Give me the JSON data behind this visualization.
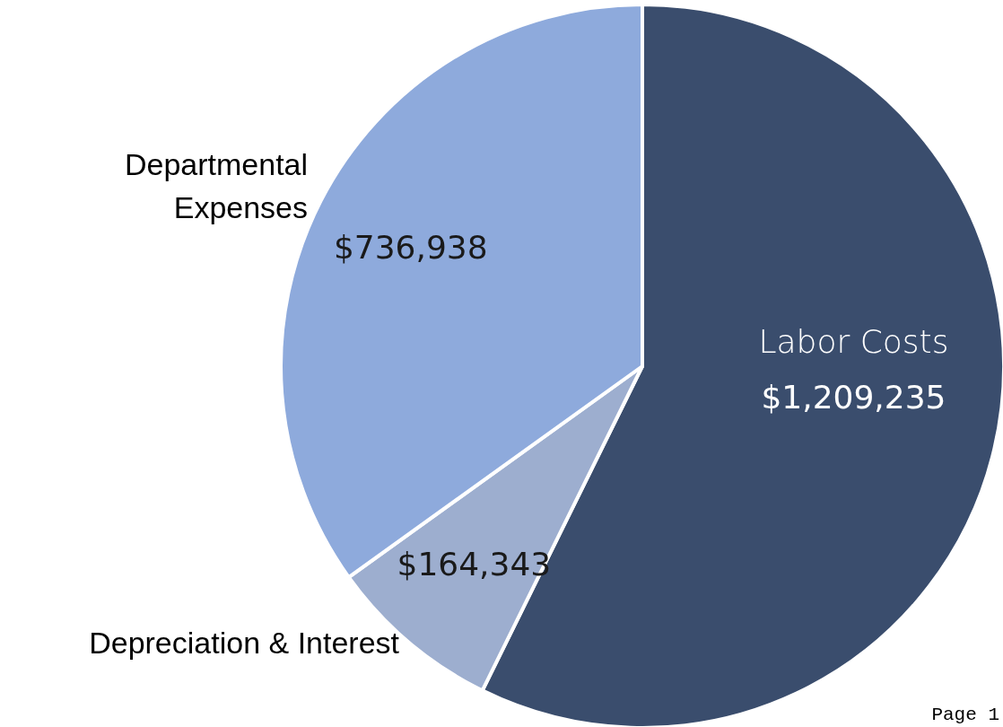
{
  "chart_data": {
    "type": "pie",
    "categories": [
      "Labor Costs",
      "Depreciation & Interest",
      "Departmental Expenses"
    ],
    "values": [
      1209235,
      164343,
      736938
    ],
    "value_labels": [
      "$1,209,235",
      "$164,343",
      "$736,938"
    ],
    "colors": [
      "#3a4d6d",
      "#9daecf",
      "#8eaadc"
    ],
    "annotations": [
      "Page 1"
    ]
  }
}
